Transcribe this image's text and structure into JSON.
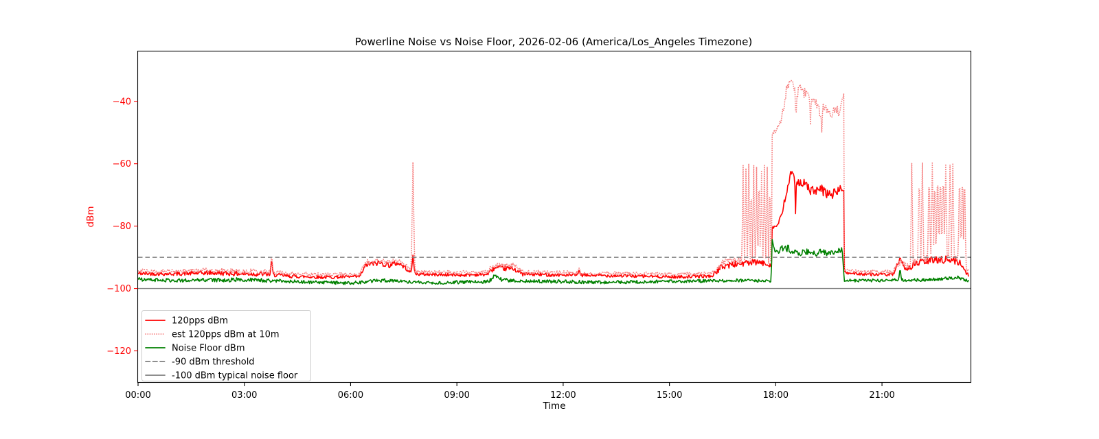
{
  "chart_data": {
    "type": "line",
    "title": "Powerline Noise vs Noise Floor, 2026-02-06 (America/Los_Angeles Timezone)",
    "xlabel": "Time",
    "ylabel": "dBm",
    "xlim_hours": [
      0,
      23.5
    ],
    "x_data_range_hours": [
      0,
      23.45
    ],
    "ylim": [
      -130,
      -24
    ],
    "x_ticks": [
      {
        "hour": 0,
        "label": "00:00"
      },
      {
        "hour": 3,
        "label": "03:00"
      },
      {
        "hour": 6,
        "label": "06:00"
      },
      {
        "hour": 9,
        "label": "09:00"
      },
      {
        "hour": 12,
        "label": "12:00"
      },
      {
        "hour": 15,
        "label": "15:00"
      },
      {
        "hour": 18,
        "label": "18:00"
      },
      {
        "hour": 21,
        "label": "21:00"
      }
    ],
    "y_ticks": [
      {
        "value": -40,
        "label": "−40"
      },
      {
        "value": -60,
        "label": "−60"
      },
      {
        "value": -80,
        "label": "−80"
      },
      {
        "value": -100,
        "label": "−100"
      },
      {
        "value": -120,
        "label": "−120"
      }
    ],
    "axis": {
      "y_color": "#ff0000",
      "x_color": "#000000",
      "spine_color": "#000000",
      "grid": "off"
    },
    "noise_seed": 42,
    "series": [
      {
        "name": "120pps dBm",
        "color": "#ff0000",
        "style": "solid",
        "width": 1.6,
        "waypoints": [
          [
            0,
            -95.2,
            0.6
          ],
          [
            1,
            -95.3,
            0.6
          ],
          [
            2,
            -95.0,
            0.7
          ],
          [
            3,
            -95.3,
            0.8
          ],
          [
            3.6,
            -95.4,
            0.7
          ],
          [
            4.2,
            -96.0,
            0.6
          ],
          [
            5.2,
            -96.4,
            0.5
          ],
          [
            6.25,
            -96.2,
            0.5
          ],
          [
            6.45,
            -92.3,
            0.9
          ],
          [
            6.8,
            -91.8,
            0.9
          ],
          [
            7.1,
            -92.5,
            0.9
          ],
          [
            7.35,
            -91.8,
            0.8
          ],
          [
            7.6,
            -93.8,
            0.7
          ],
          [
            7.72,
            -95.0,
            0.5
          ],
          [
            7.9,
            -95.4,
            0.5
          ],
          [
            9.0,
            -95.7,
            0.5
          ],
          [
            9.85,
            -95.5,
            0.5
          ],
          [
            10.05,
            -93.5,
            0.8
          ],
          [
            10.6,
            -93.6,
            0.8
          ],
          [
            10.85,
            -95.4,
            0.6
          ],
          [
            12.0,
            -95.7,
            0.5
          ],
          [
            13.0,
            -95.8,
            0.5
          ],
          [
            14.0,
            -96.0,
            0.5
          ],
          [
            15.2,
            -96.3,
            0.5
          ],
          [
            16.2,
            -96.0,
            0.5
          ],
          [
            16.5,
            -92.8,
            1.1
          ],
          [
            17.0,
            -92.0,
            1.1
          ],
          [
            17.5,
            -91.6,
            1.0
          ],
          [
            17.885,
            -92.5,
            0.7
          ],
          [
            17.9,
            -80.5,
            0.4
          ],
          [
            18.05,
            -79.8,
            0.6
          ],
          [
            18.18,
            -76.0,
            1.0
          ],
          [
            18.32,
            -68.5,
            1.5
          ],
          [
            18.42,
            -63.2,
            1.2
          ],
          [
            18.52,
            -64.5,
            1.3
          ],
          [
            18.65,
            -65.5,
            1.5
          ],
          [
            18.8,
            -66.5,
            1.6
          ],
          [
            19.0,
            -68.5,
            1.8
          ],
          [
            19.15,
            -69.0,
            1.8
          ],
          [
            19.3,
            -68.5,
            1.8
          ],
          [
            19.5,
            -70.0,
            1.8
          ],
          [
            19.65,
            -69.5,
            1.5
          ],
          [
            19.8,
            -68.2,
            1.2
          ],
          [
            19.92,
            -68.0,
            1.0
          ],
          [
            19.935,
            -95.0,
            0.6
          ],
          [
            20.6,
            -95.4,
            0.5
          ],
          [
            21.3,
            -95.6,
            0.5
          ],
          [
            21.42,
            -93.0,
            0.9
          ],
          [
            21.55,
            -91.8,
            1.1
          ],
          [
            21.7,
            -93.8,
            0.8
          ],
          [
            21.85,
            -92.8,
            1.0
          ],
          [
            22.0,
            -91.8,
            1.2
          ],
          [
            22.3,
            -91.2,
            1.3
          ],
          [
            22.6,
            -90.6,
            1.3
          ],
          [
            22.9,
            -90.8,
            1.3
          ],
          [
            23.1,
            -91.2,
            1.2
          ],
          [
            23.25,
            -92.3,
            1.0
          ],
          [
            23.38,
            -94.8,
            0.8
          ],
          [
            23.45,
            -95.8,
            0.5
          ]
        ],
        "spikes": [
          [
            3.77,
            -90.0,
            0.04
          ],
          [
            7.76,
            -89.3,
            0.05
          ],
          [
            12.45,
            -93.8,
            0.04
          ],
          [
            18.56,
            -76.0,
            0.025
          ],
          [
            21.51,
            -89.8,
            0.05
          ]
        ]
      },
      {
        "name": "est 120pps dBm at 10m",
        "color": "#f67e7e",
        "style": "dotted",
        "width": 1.8,
        "waypoints": [
          [
            0,
            -94.4,
            0.7
          ],
          [
            1,
            -94.5,
            0.7
          ],
          [
            2,
            -94.2,
            0.8
          ],
          [
            3,
            -94.5,
            0.9
          ],
          [
            3.6,
            -94.6,
            0.8
          ],
          [
            4.2,
            -95.2,
            0.7
          ],
          [
            5.2,
            -95.6,
            0.6
          ],
          [
            6.25,
            -95.4,
            0.6
          ],
          [
            6.45,
            -91.4,
            1.0
          ],
          [
            6.8,
            -90.9,
            1.0
          ],
          [
            7.1,
            -91.6,
            1.0
          ],
          [
            7.35,
            -90.9,
            0.9
          ],
          [
            7.6,
            -93.0,
            0.8
          ],
          [
            7.72,
            -94.2,
            0.6
          ],
          [
            7.9,
            -94.6,
            0.6
          ],
          [
            9.0,
            -94.9,
            0.6
          ],
          [
            9.85,
            -94.7,
            0.6
          ],
          [
            10.05,
            -92.5,
            0.9
          ],
          [
            10.6,
            -92.6,
            0.9
          ],
          [
            10.85,
            -94.6,
            0.7
          ],
          [
            12.0,
            -94.9,
            0.6
          ],
          [
            13.0,
            -95.0,
            0.6
          ],
          [
            14.0,
            -95.2,
            0.6
          ],
          [
            15.2,
            -95.5,
            0.6
          ],
          [
            16.2,
            -95.2,
            0.6
          ],
          [
            16.5,
            -91.8,
            1.2
          ],
          [
            17.0,
            -91.0,
            1.2
          ],
          [
            17.5,
            -90.7,
            1.1
          ],
          [
            17.885,
            -91.5,
            0.8
          ],
          [
            17.9,
            -50.5,
            0.8
          ],
          [
            18.0,
            -49.5,
            1.2
          ],
          [
            18.1,
            -47.0,
            1.5
          ],
          [
            18.2,
            -43.0,
            2.0
          ],
          [
            18.3,
            -36.5,
            1.5
          ],
          [
            18.42,
            -33.2,
            0.8
          ],
          [
            18.5,
            -34.8,
            1.2
          ],
          [
            18.58,
            -38.0,
            2.0
          ],
          [
            18.68,
            -35.8,
            1.2
          ],
          [
            18.78,
            -37.5,
            1.5
          ],
          [
            18.88,
            -36.8,
            1.5
          ],
          [
            18.98,
            -40.0,
            1.5
          ],
          [
            19.08,
            -38.8,
            1.5
          ],
          [
            19.18,
            -42.5,
            1.8
          ],
          [
            19.28,
            -43.5,
            2.0
          ],
          [
            19.38,
            -40.8,
            1.5
          ],
          [
            19.5,
            -43.5,
            1.8
          ],
          [
            19.6,
            -44.5,
            1.5
          ],
          [
            19.68,
            -41.5,
            1.5
          ],
          [
            19.78,
            -43.5,
            1.5
          ],
          [
            19.86,
            -39.5,
            1.2
          ],
          [
            19.92,
            -38.5,
            1.0
          ],
          [
            19.935,
            -94.2,
            0.6
          ],
          [
            20.6,
            -94.5,
            0.6
          ],
          [
            21.3,
            -94.7,
            0.6
          ],
          [
            21.42,
            -92.2,
            1.0
          ],
          [
            21.55,
            -91.0,
            1.2
          ],
          [
            21.7,
            -93.0,
            0.9
          ],
          [
            21.85,
            -92.0,
            1.1
          ],
          [
            22.0,
            -91.0,
            1.3
          ],
          [
            22.3,
            -90.4,
            1.4
          ],
          [
            22.6,
            -89.8,
            1.4
          ],
          [
            22.9,
            -90.0,
            1.4
          ],
          [
            23.1,
            -90.4,
            1.3
          ],
          [
            23.25,
            -91.5,
            1.1
          ],
          [
            23.38,
            -94.0,
            0.9
          ],
          [
            23.45,
            -95.0,
            0.6
          ]
        ],
        "spikes": [
          [
            3.77,
            -89.0,
            0.04
          ],
          [
            7.76,
            -59.5,
            0.05
          ],
          [
            12.45,
            -93.0,
            0.04
          ],
          [
            17.08,
            -60.5,
            0.035
          ],
          [
            17.16,
            -61.5,
            0.035
          ],
          [
            17.24,
            -60.0,
            0.035
          ],
          [
            17.31,
            -62.0,
            0.03
          ],
          [
            17.38,
            -60.5,
            0.035
          ],
          [
            17.46,
            -61.0,
            0.03
          ],
          [
            17.53,
            -60.0,
            0.035
          ],
          [
            17.6,
            -62.5,
            0.03
          ],
          [
            17.68,
            -60.5,
            0.035
          ],
          [
            17.76,
            -61.0,
            0.035
          ],
          [
            17.83,
            -60.5,
            0.03
          ],
          [
            18.57,
            -47.0,
            0.025
          ],
          [
            18.98,
            -47.5,
            0.025
          ],
          [
            19.3,
            -50.0,
            0.02
          ],
          [
            21.84,
            -59.8,
            0.04
          ],
          [
            22.05,
            -60.5,
            0.04
          ],
          [
            22.14,
            -59.6,
            0.04
          ],
          [
            22.33,
            -60.2,
            0.04
          ],
          [
            22.42,
            -59.8,
            0.04
          ],
          [
            22.49,
            -60.5,
            0.035
          ],
          [
            22.57,
            -59.6,
            0.04
          ],
          [
            22.65,
            -60.3,
            0.04
          ],
          [
            22.73,
            -59.7,
            0.04
          ],
          [
            22.8,
            -60.1,
            0.04
          ],
          [
            22.92,
            -60.4,
            0.04
          ],
          [
            23.0,
            -59.8,
            0.04
          ],
          [
            23.19,
            -60.2,
            0.04
          ],
          [
            23.27,
            -59.6,
            0.04
          ],
          [
            23.33,
            -60.0,
            0.04
          ]
        ]
      },
      {
        "name": "Noise Floor dBm",
        "color": "#008000",
        "style": "solid",
        "width": 1.6,
        "waypoints": [
          [
            0,
            -97.1,
            0.55
          ],
          [
            1,
            -97.4,
            0.55
          ],
          [
            2,
            -97.3,
            0.6
          ],
          [
            3,
            -97.2,
            0.7
          ],
          [
            4,
            -97.6,
            0.55
          ],
          [
            5,
            -98.0,
            0.5
          ],
          [
            6,
            -98.3,
            0.5
          ],
          [
            6.6,
            -97.6,
            0.6
          ],
          [
            7.1,
            -97.4,
            0.6
          ],
          [
            7.6,
            -97.9,
            0.5
          ],
          [
            8.3,
            -98.2,
            0.5
          ],
          [
            9,
            -98.0,
            0.55
          ],
          [
            9.9,
            -97.8,
            0.55
          ],
          [
            10.05,
            -96.0,
            0.7
          ],
          [
            10.3,
            -97.3,
            0.6
          ],
          [
            11,
            -97.7,
            0.55
          ],
          [
            12,
            -97.8,
            0.55
          ],
          [
            13,
            -98.0,
            0.5
          ],
          [
            14,
            -97.9,
            0.5
          ],
          [
            15,
            -97.7,
            0.5
          ],
          [
            16,
            -97.6,
            0.5
          ],
          [
            17,
            -97.4,
            0.5
          ],
          [
            17.885,
            -97.6,
            0.4
          ],
          [
            17.9,
            -85.2,
            0.8
          ],
          [
            18.0,
            -89.0,
            1.0
          ],
          [
            18.1,
            -87.6,
            1.0
          ],
          [
            18.25,
            -86.8,
            0.9
          ],
          [
            18.4,
            -88.3,
            1.0
          ],
          [
            18.55,
            -88.0,
            1.0
          ],
          [
            18.7,
            -88.5,
            1.0
          ],
          [
            18.9,
            -88.2,
            1.0
          ],
          [
            19.1,
            -88.8,
            1.0
          ],
          [
            19.3,
            -88.3,
            1.0
          ],
          [
            19.5,
            -88.8,
            0.9
          ],
          [
            19.7,
            -88.2,
            0.9
          ],
          [
            19.88,
            -87.6,
            0.8
          ],
          [
            19.935,
            -97.4,
            0.5
          ],
          [
            20.6,
            -97.4,
            0.5
          ],
          [
            21.5,
            -97.3,
            0.5
          ],
          [
            22.3,
            -97.2,
            0.5
          ],
          [
            22.9,
            -96.7,
            0.5
          ],
          [
            23.15,
            -96.4,
            0.5
          ],
          [
            23.35,
            -97.3,
            0.5
          ],
          [
            23.45,
            -97.8,
            0.4
          ]
        ],
        "spikes": [
          [
            17.9,
            -84.3,
            0.03
          ],
          [
            18.35,
            -85.3,
            0.03
          ],
          [
            21.51,
            -93.3,
            0.04
          ]
        ]
      }
    ],
    "reference_lines": [
      {
        "name": "-90 dBm threshold",
        "value": -90,
        "style": "dashed",
        "color": "#7f7f7f",
        "width": 1.4
      },
      {
        "name": "-100 dBm typical noise floor",
        "value": -100,
        "style": "solid",
        "color": "#7f7f7f",
        "width": 1.4
      }
    ],
    "legend": {
      "position": "lower left",
      "entries": [
        {
          "label": "120pps dBm",
          "color": "#ff0000",
          "style": "solid"
        },
        {
          "label": "est 120pps dBm at 10m",
          "color": "#f67e7e",
          "style": "dotted"
        },
        {
          "label": "Noise Floor dBm",
          "color": "#008000",
          "style": "solid"
        },
        {
          "label": "-90 dBm threshold",
          "color": "#7f7f7f",
          "style": "dashed"
        },
        {
          "label": "-100 dBm typical noise floor",
          "color": "#7f7f7f",
          "style": "solid"
        }
      ]
    }
  }
}
